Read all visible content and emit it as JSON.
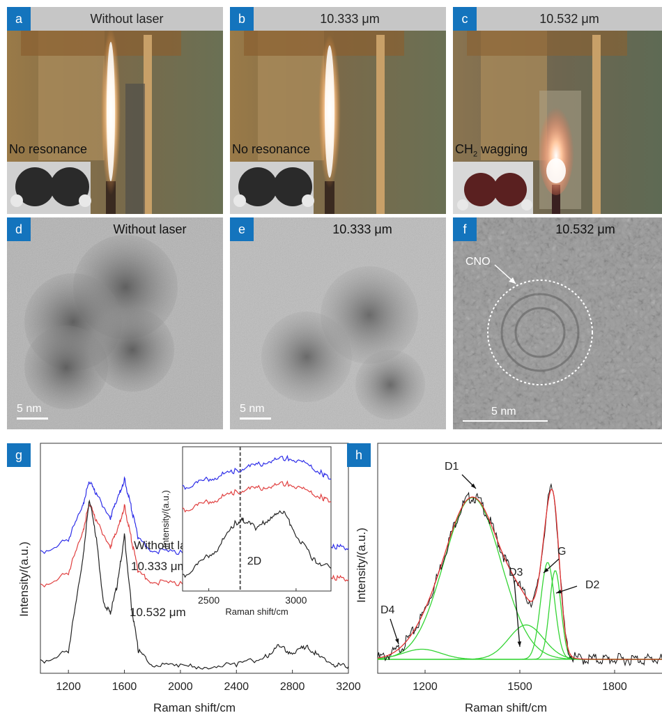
{
  "photos": [
    {
      "tag": "a",
      "title": "Without laser",
      "label": "No resonance",
      "label_sub": "",
      "label_tail": ""
    },
    {
      "tag": "b",
      "title": "10.333 μm",
      "label": "No resonance",
      "label_sub": "",
      "label_tail": ""
    },
    {
      "tag": "c",
      "title": "10.532 μm",
      "label": "CH",
      "label_sub": "2",
      "label_tail": " wagging"
    }
  ],
  "tem": [
    {
      "tag": "d",
      "title": "Without laser",
      "scale": "5 nm"
    },
    {
      "tag": "e",
      "title": "10.333 μm",
      "scale": "5 nm"
    },
    {
      "tag": "f",
      "title": "10.532 μm",
      "scale": "5 nm",
      "annotation": "CNO"
    }
  ],
  "chart_data": [
    {
      "panel": "g",
      "type": "line",
      "xlabel": "Raman shift/cm",
      "ylabel": "Intensity/(a.u.)",
      "xlim": [
        1000,
        3200
      ],
      "xticks": [
        1200,
        1600,
        2000,
        2400,
        2800,
        3200
      ],
      "series": [
        {
          "name": "Without laser",
          "color": "#2e2ee8",
          "x": [
            1000,
            1200,
            1300,
            1350,
            1400,
            1500,
            1550,
            1600,
            1650,
            1700,
            1800,
            2000,
            2200,
            2400,
            2600,
            2700,
            2800,
            2900,
            3000,
            3100,
            3200
          ],
          "y": [
            0.54,
            0.6,
            0.75,
            0.86,
            0.8,
            0.7,
            0.78,
            0.87,
            0.74,
            0.6,
            0.55,
            0.54,
            0.54,
            0.55,
            0.56,
            0.58,
            0.6,
            0.61,
            0.59,
            0.57,
            0.56
          ]
        },
        {
          "name": "10.333 μm",
          "color": "#e04040",
          "x": [
            1000,
            1200,
            1300,
            1350,
            1400,
            1500,
            1550,
            1600,
            1650,
            1700,
            1800,
            2000,
            2200,
            2400,
            2600,
            2700,
            2800,
            2900,
            3000,
            3100,
            3200
          ],
          "y": [
            0.39,
            0.45,
            0.63,
            0.76,
            0.68,
            0.57,
            0.64,
            0.75,
            0.6,
            0.45,
            0.41,
            0.4,
            0.4,
            0.41,
            0.43,
            0.46,
            0.47,
            0.48,
            0.46,
            0.43,
            0.42
          ]
        },
        {
          "name": "10.532 μm",
          "color": "#222222",
          "x": [
            1000,
            1200,
            1300,
            1350,
            1400,
            1450,
            1500,
            1550,
            1600,
            1650,
            1700,
            1800,
            2000,
            2200,
            2400,
            2600,
            2700,
            2800,
            2900,
            3000,
            3100,
            3200
          ],
          "y": [
            0.05,
            0.1,
            0.5,
            0.78,
            0.6,
            0.32,
            0.27,
            0.4,
            0.62,
            0.3,
            0.1,
            0.04,
            0.03,
            0.03,
            0.04,
            0.07,
            0.12,
            0.09,
            0.12,
            0.07,
            0.04,
            0.03
          ]
        }
      ],
      "inset": {
        "type": "line",
        "xlabel": "Raman shift/cm",
        "ylabel": "Intensity/(a.u.)",
        "xlim": [
          2350,
          3200
        ],
        "xticks": [
          2500,
          3000
        ],
        "annotation": "2D",
        "marker_x": 2680,
        "series": [
          {
            "color": "#2e2ee8",
            "x": [
              2350,
              2450,
              2550,
              2650,
              2750,
              2850,
              2950,
              3050,
              3150,
              3200
            ],
            "y": [
              0.73,
              0.77,
              0.81,
              0.85,
              0.88,
              0.92,
              0.94,
              0.9,
              0.83,
              0.79
            ]
          },
          {
            "color": "#e04040",
            "x": [
              2350,
              2450,
              2550,
              2650,
              2750,
              2850,
              2950,
              3050,
              3150,
              3200
            ],
            "y": [
              0.57,
              0.61,
              0.65,
              0.7,
              0.72,
              0.74,
              0.76,
              0.71,
              0.66,
              0.63
            ]
          },
          {
            "color": "#222222",
            "x": [
              2350,
              2450,
              2550,
              2650,
              2700,
              2780,
              2850,
              2930,
              3000,
              3100,
              3200
            ],
            "y": [
              0.1,
              0.2,
              0.3,
              0.48,
              0.5,
              0.44,
              0.52,
              0.56,
              0.4,
              0.22,
              0.16
            ]
          }
        ]
      }
    },
    {
      "panel": "h",
      "type": "line",
      "xlabel": "Raman shift/cm",
      "ylabel": "Intensity/(a.u.)",
      "xlim": [
        1050,
        1950
      ],
      "xticks": [
        1200,
        1500,
        1800
      ],
      "peak_labels": [
        {
          "text": "D1",
          "x": 1340
        },
        {
          "text": "D3",
          "x": 1500
        },
        {
          "text": "G",
          "x": 1590
        },
        {
          "text": "D2",
          "x": 1620
        },
        {
          "text": "D4",
          "x": 1180
        }
      ],
      "components": [
        {
          "name": "D1",
          "center": 1350,
          "height": 0.8,
          "width": 90
        },
        {
          "name": "D3",
          "center": 1520,
          "height": 0.17,
          "width": 55
        },
        {
          "name": "G",
          "center": 1588,
          "height": 0.48,
          "width": 22
        },
        {
          "name": "D2",
          "center": 1612,
          "height": 0.44,
          "width": 18
        },
        {
          "name": "D4",
          "center": 1190,
          "height": 0.05,
          "width": 60
        }
      ],
      "colors": {
        "data": "#111111",
        "fit": "#e03030",
        "component": "#34d434"
      }
    }
  ]
}
